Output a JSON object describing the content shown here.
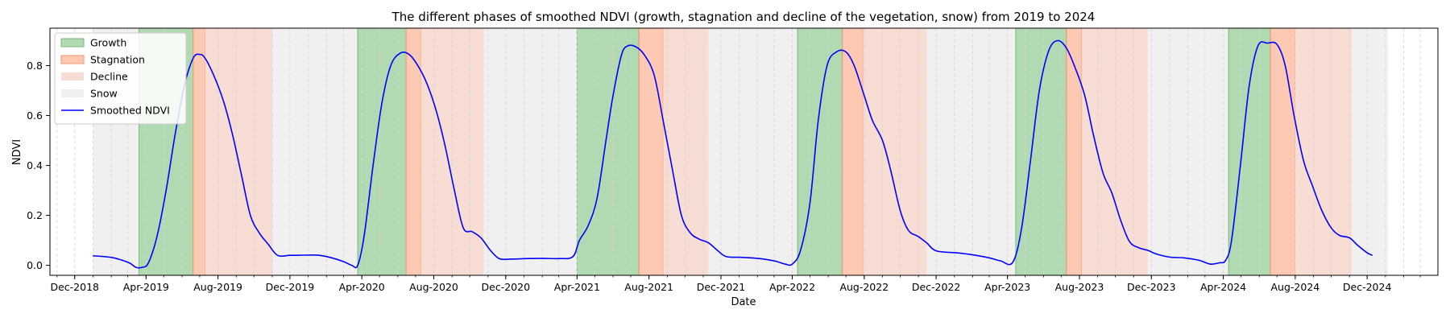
{
  "chart_data": {
    "type": "line",
    "title": "The different phases of smoothed NDVI (growth, stagnation and decline of the vegetation, snow) from 2019 to 2024",
    "xlabel": "Date",
    "ylabel": "NDVI",
    "xlim": [
      "2018-10-20",
      "2025-03-31"
    ],
    "ylim": [
      -0.04,
      0.95
    ],
    "grid": "vertical dashed lines at month boundaries",
    "legend_position": "top-left",
    "x_tick_labels": [
      {
        "date": "2018-12-01",
        "label": "Dec-2018"
      },
      {
        "date": "2019-04-01",
        "label": "Apr-2019"
      },
      {
        "date": "2019-08-01",
        "label": "Aug-2019"
      },
      {
        "date": "2019-12-01",
        "label": "Dec-2019"
      },
      {
        "date": "2020-04-01",
        "label": "Apr-2020"
      },
      {
        "date": "2020-08-01",
        "label": "Aug-2020"
      },
      {
        "date": "2020-12-01",
        "label": "Dec-2020"
      },
      {
        "date": "2021-04-01",
        "label": "Apr-2021"
      },
      {
        "date": "2021-08-01",
        "label": "Aug-2021"
      },
      {
        "date": "2021-12-01",
        "label": "Dec-2021"
      },
      {
        "date": "2022-04-01",
        "label": "Apr-2022"
      },
      {
        "date": "2022-08-01",
        "label": "Aug-2022"
      },
      {
        "date": "2022-12-01",
        "label": "Dec-2022"
      },
      {
        "date": "2023-04-01",
        "label": "Apr-2023"
      },
      {
        "date": "2023-08-01",
        "label": "Aug-2023"
      },
      {
        "date": "2023-12-01",
        "label": "Dec-2023"
      },
      {
        "date": "2024-04-01",
        "label": "Apr-2024"
      },
      {
        "date": "2024-08-01",
        "label": "Aug-2024"
      },
      {
        "date": "2024-12-01",
        "label": "Dec-2024"
      }
    ],
    "y_ticks": [
      0.0,
      0.2,
      0.4,
      0.6,
      0.8
    ],
    "y_tick_labels": [
      "0.0",
      "0.2",
      "0.4",
      "0.6",
      "0.8"
    ],
    "legend": [
      {
        "key": "growth",
        "label": "Growth",
        "kind": "patch"
      },
      {
        "key": "stagnation",
        "label": "Stagnation",
        "kind": "patch"
      },
      {
        "key": "decline",
        "label": "Decline",
        "kind": "patch"
      },
      {
        "key": "snow",
        "label": "Snow",
        "kind": "patch"
      },
      {
        "key": "ndvi",
        "label": "Smoothed NDVI",
        "kind": "line"
      }
    ],
    "colors": {
      "growth": "#b2dab2",
      "growth_edge": "#78b878",
      "stagnation": "#fdc9b2",
      "stagnation_edge": "#f0956e",
      "decline": "#f7ddd3",
      "snow": "#f0f0f0",
      "ndvi": "#0000ff",
      "grid": "#d4d4d4"
    },
    "phases": [
      {
        "phase": "snow",
        "start": "2019-01-01",
        "end": "2019-03-20"
      },
      {
        "phase": "growth",
        "start": "2019-03-20",
        "end": "2019-06-20"
      },
      {
        "phase": "stagnation",
        "start": "2019-06-20",
        "end": "2019-07-10"
      },
      {
        "phase": "decline",
        "start": "2019-07-10",
        "end": "2019-11-01"
      },
      {
        "phase": "snow",
        "start": "2019-11-01",
        "end": "2020-03-25"
      },
      {
        "phase": "growth",
        "start": "2020-03-25",
        "end": "2020-06-15"
      },
      {
        "phase": "stagnation",
        "start": "2020-06-15",
        "end": "2020-07-10"
      },
      {
        "phase": "decline",
        "start": "2020-07-10",
        "end": "2020-10-25"
      },
      {
        "phase": "snow",
        "start": "2020-10-25",
        "end": "2021-04-01"
      },
      {
        "phase": "growth",
        "start": "2021-04-01",
        "end": "2021-07-15"
      },
      {
        "phase": "stagnation",
        "start": "2021-07-15",
        "end": "2021-08-25"
      },
      {
        "phase": "decline",
        "start": "2021-08-25",
        "end": "2021-11-10"
      },
      {
        "phase": "snow",
        "start": "2021-11-10",
        "end": "2022-04-10"
      },
      {
        "phase": "growth",
        "start": "2022-04-10",
        "end": "2022-06-25"
      },
      {
        "phase": "stagnation",
        "start": "2022-06-25",
        "end": "2022-07-30"
      },
      {
        "phase": "decline",
        "start": "2022-07-30",
        "end": "2022-11-15"
      },
      {
        "phase": "snow",
        "start": "2022-11-15",
        "end": "2023-04-15"
      },
      {
        "phase": "growth",
        "start": "2023-04-15",
        "end": "2023-07-10"
      },
      {
        "phase": "stagnation",
        "start": "2023-07-10",
        "end": "2023-08-05"
      },
      {
        "phase": "decline",
        "start": "2023-08-05",
        "end": "2023-11-25"
      },
      {
        "phase": "snow",
        "start": "2023-11-25",
        "end": "2024-04-10"
      },
      {
        "phase": "growth",
        "start": "2024-04-10",
        "end": "2024-06-20"
      },
      {
        "phase": "stagnation",
        "start": "2024-06-20",
        "end": "2024-08-01"
      },
      {
        "phase": "decline",
        "start": "2024-08-01",
        "end": "2024-11-05"
      },
      {
        "phase": "snow",
        "start": "2024-11-05",
        "end": "2025-01-05"
      }
    ],
    "series": [
      {
        "name": "Smoothed NDVI",
        "points": [
          [
            "2019-01-01",
            0.038
          ],
          [
            "2019-01-20",
            0.035
          ],
          [
            "2019-02-05",
            0.03
          ],
          [
            "2019-02-20",
            0.02
          ],
          [
            "2019-03-05",
            0.008
          ],
          [
            "2019-03-15",
            -0.008
          ],
          [
            "2019-03-25",
            -0.008
          ],
          [
            "2019-04-05",
            0.01
          ],
          [
            "2019-04-20",
            0.12
          ],
          [
            "2019-05-05",
            0.3
          ],
          [
            "2019-05-20",
            0.52
          ],
          [
            "2019-06-05",
            0.72
          ],
          [
            "2019-06-20",
            0.83
          ],
          [
            "2019-07-01",
            0.845
          ],
          [
            "2019-07-10",
            0.83
          ],
          [
            "2019-07-25",
            0.76
          ],
          [
            "2019-08-10",
            0.66
          ],
          [
            "2019-08-25",
            0.53
          ],
          [
            "2019-09-10",
            0.36
          ],
          [
            "2019-09-25",
            0.2
          ],
          [
            "2019-10-10",
            0.13
          ],
          [
            "2019-10-25",
            0.085
          ],
          [
            "2019-11-10",
            0.04
          ],
          [
            "2019-12-01",
            0.04
          ],
          [
            "2020-01-01",
            0.041
          ],
          [
            "2020-01-20",
            0.04
          ],
          [
            "2020-02-10",
            0.03
          ],
          [
            "2020-03-01",
            0.015
          ],
          [
            "2020-03-15",
            0.0
          ],
          [
            "2020-03-25",
            0.0
          ],
          [
            "2020-04-05",
            0.12
          ],
          [
            "2020-04-20",
            0.4
          ],
          [
            "2020-05-05",
            0.65
          ],
          [
            "2020-05-20",
            0.8
          ],
          [
            "2020-06-05",
            0.85
          ],
          [
            "2020-06-20",
            0.845
          ],
          [
            "2020-07-05",
            0.8
          ],
          [
            "2020-07-20",
            0.73
          ],
          [
            "2020-08-05",
            0.62
          ],
          [
            "2020-08-20",
            0.48
          ],
          [
            "2020-09-05",
            0.3
          ],
          [
            "2020-09-20",
            0.15
          ],
          [
            "2020-10-05",
            0.135
          ],
          [
            "2020-10-20",
            0.11
          ],
          [
            "2020-11-05",
            0.06
          ],
          [
            "2020-11-20",
            0.027
          ],
          [
            "2020-12-10",
            0.025
          ],
          [
            "2021-01-05",
            0.027
          ],
          [
            "2021-02-01",
            0.028
          ],
          [
            "2021-03-01",
            0.027
          ],
          [
            "2021-03-25",
            0.035
          ],
          [
            "2021-04-05",
            0.1
          ],
          [
            "2021-04-20",
            0.16
          ],
          [
            "2021-05-05",
            0.27
          ],
          [
            "2021-05-20",
            0.5
          ],
          [
            "2021-06-01",
            0.68
          ],
          [
            "2021-06-15",
            0.84
          ],
          [
            "2021-06-25",
            0.878
          ],
          [
            "2021-07-10",
            0.875
          ],
          [
            "2021-07-25",
            0.84
          ],
          [
            "2021-08-10",
            0.76
          ],
          [
            "2021-08-25",
            0.58
          ],
          [
            "2021-09-10",
            0.38
          ],
          [
            "2021-09-25",
            0.2
          ],
          [
            "2021-10-10",
            0.13
          ],
          [
            "2021-10-25",
            0.105
          ],
          [
            "2021-11-10",
            0.09
          ],
          [
            "2021-11-25",
            0.06
          ],
          [
            "2021-12-10",
            0.035
          ],
          [
            "2022-01-05",
            0.032
          ],
          [
            "2022-02-01",
            0.028
          ],
          [
            "2022-03-01",
            0.018
          ],
          [
            "2022-03-20",
            0.005
          ],
          [
            "2022-04-01",
            0.005
          ],
          [
            "2022-04-15",
            0.06
          ],
          [
            "2022-05-01",
            0.25
          ],
          [
            "2022-05-15",
            0.58
          ],
          [
            "2022-05-30",
            0.8
          ],
          [
            "2022-06-15",
            0.855
          ],
          [
            "2022-07-01",
            0.855
          ],
          [
            "2022-07-15",
            0.8
          ],
          [
            "2022-08-01",
            0.68
          ],
          [
            "2022-08-15",
            0.58
          ],
          [
            "2022-09-01",
            0.5
          ],
          [
            "2022-09-15",
            0.38
          ],
          [
            "2022-10-01",
            0.22
          ],
          [
            "2022-10-15",
            0.14
          ],
          [
            "2022-11-01",
            0.115
          ],
          [
            "2022-11-15",
            0.09
          ],
          [
            "2022-12-01",
            0.058
          ],
          [
            "2023-01-05",
            0.05
          ],
          [
            "2023-02-01",
            0.042
          ],
          [
            "2023-03-01",
            0.03
          ],
          [
            "2023-03-20",
            0.018
          ],
          [
            "2023-04-10",
            0.012
          ],
          [
            "2023-04-25",
            0.15
          ],
          [
            "2023-05-10",
            0.42
          ],
          [
            "2023-05-25",
            0.7
          ],
          [
            "2023-06-10",
            0.86
          ],
          [
            "2023-06-25",
            0.9
          ],
          [
            "2023-07-10",
            0.87
          ],
          [
            "2023-07-25",
            0.79
          ],
          [
            "2023-08-10",
            0.68
          ],
          [
            "2023-08-25",
            0.52
          ],
          [
            "2023-09-10",
            0.37
          ],
          [
            "2023-09-25",
            0.29
          ],
          [
            "2023-10-10",
            0.18
          ],
          [
            "2023-10-25",
            0.095
          ],
          [
            "2023-11-10",
            0.07
          ],
          [
            "2023-11-25",
            0.06
          ],
          [
            "2023-12-10",
            0.045
          ],
          [
            "2024-01-01",
            0.033
          ],
          [
            "2024-01-25",
            0.03
          ],
          [
            "2024-02-20",
            0.02
          ],
          [
            "2024-03-10",
            0.005
          ],
          [
            "2024-03-25",
            0.01
          ],
          [
            "2024-04-05",
            0.02
          ],
          [
            "2024-04-15",
            0.1
          ],
          [
            "2024-04-30",
            0.4
          ],
          [
            "2024-05-15",
            0.72
          ],
          [
            "2024-05-30",
            0.88
          ],
          [
            "2024-06-15",
            0.89
          ],
          [
            "2024-07-01",
            0.885
          ],
          [
            "2024-07-15",
            0.8
          ],
          [
            "2024-07-30",
            0.6
          ],
          [
            "2024-08-15",
            0.42
          ],
          [
            "2024-08-30",
            0.32
          ],
          [
            "2024-09-15",
            0.22
          ],
          [
            "2024-10-01",
            0.15
          ],
          [
            "2024-10-15",
            0.12
          ],
          [
            "2024-11-01",
            0.11
          ],
          [
            "2024-11-15",
            0.08
          ],
          [
            "2024-12-01",
            0.05
          ],
          [
            "2024-12-10",
            0.04
          ]
        ]
      }
    ]
  }
}
